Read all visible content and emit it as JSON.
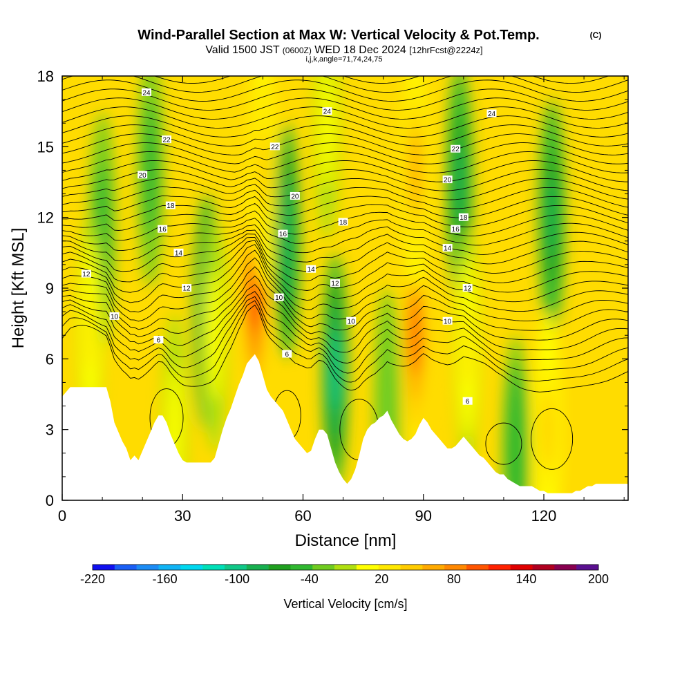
{
  "title": {
    "main": "Wind-Parallel Section at Max W: Vertical Velocity & Pot.Temp.",
    "copyright": "(C)",
    "valid_prefix": "Valid 1500 JST",
    "valid_utc": "(0600Z)",
    "valid_date": "WED 18 Dec 2024",
    "forecast": "[12hrFcst@2224z]",
    "indices": "i,j,k,angle=71,74,24,75"
  },
  "chart_data": {
    "type": "heatmap",
    "xlabel": "Distance [nm]",
    "ylabel": "Height [Kft MSL]",
    "xlim": [
      0,
      141
    ],
    "ylim": [
      0,
      18
    ],
    "x_ticks": [
      0,
      30,
      60,
      90,
      120
    ],
    "y_ticks": [
      0,
      3,
      6,
      9,
      12,
      15,
      18
    ],
    "terrain": {
      "x": [
        0,
        1,
        2,
        11,
        12,
        13,
        15,
        16,
        17,
        18,
        19,
        20,
        21,
        22,
        23,
        24,
        25,
        26,
        27,
        28,
        29,
        30,
        31,
        32,
        33,
        34,
        35,
        37,
        38,
        39,
        40,
        41,
        42,
        43,
        44,
        45,
        46,
        47,
        48,
        49,
        50,
        51,
        52,
        53,
        54,
        55,
        56,
        57,
        58,
        59,
        60,
        61,
        62,
        63,
        64,
        65,
        66,
        67,
        68,
        69,
        70,
        71,
        72,
        73,
        74,
        75,
        76,
        77,
        78,
        79,
        80,
        81,
        82,
        83,
        84,
        85,
        86,
        87,
        88,
        89,
        90,
        91,
        92,
        93,
        94,
        95,
        96,
        97,
        98,
        99,
        100,
        101,
        102,
        103,
        104,
        105,
        106,
        107,
        108,
        109,
        110,
        111,
        112,
        113,
        114,
        115,
        116,
        117,
        118,
        119,
        120,
        121,
        122,
        123,
        124,
        125,
        126,
        127,
        128,
        129,
        130,
        131,
        132,
        133,
        134,
        135,
        136,
        137,
        138,
        139,
        140,
        141
      ],
      "y": [
        4.4,
        4.6,
        4.8,
        4.8,
        4.2,
        3.3,
        2.5,
        2.2,
        1.7,
        1.9,
        1.7,
        2.1,
        2.5,
        2.9,
        3.3,
        3.6,
        3.6,
        3.3,
        2.8,
        2.4,
        2.0,
        1.7,
        1.6,
        1.6,
        1.6,
        1.6,
        1.6,
        1.6,
        1.8,
        2.4,
        3.0,
        3.5,
        3.9,
        4.4,
        4.9,
        5.3,
        5.8,
        6.0,
        6.2,
        5.9,
        5.3,
        4.7,
        4.4,
        4.2,
        4.0,
        3.8,
        3.4,
        3.0,
        2.6,
        2.4,
        2.2,
        2.0,
        2.1,
        2.6,
        3.0,
        3.0,
        2.8,
        2.2,
        1.6,
        1.2,
        0.9,
        0.7,
        0.9,
        1.3,
        1.9,
        2.6,
        3.0,
        3.2,
        3.3,
        3.5,
        3.6,
        3.8,
        3.4,
        3.1,
        2.8,
        2.6,
        2.5,
        2.6,
        2.8,
        3.2,
        3.5,
        3.3,
        3.0,
        2.8,
        2.6,
        2.4,
        2.2,
        2.2,
        2.3,
        2.5,
        2.7,
        2.5,
        2.3,
        2.1,
        1.9,
        1.8,
        1.6,
        1.4,
        1.2,
        1.1,
        1.1,
        0.9,
        0.8,
        0.7,
        0.6,
        0.6,
        0.6,
        0.6,
        0.5,
        0.4,
        0.4,
        0.3,
        0.3,
        0.3,
        0.3,
        0.3,
        0.3,
        0.3,
        0.4,
        0.4,
        0.5,
        0.6,
        0.6,
        0.7,
        0.7,
        0.7,
        0.7,
        0.7,
        0.7,
        0.7,
        0.7,
        0.7
      ]
    },
    "updrafts": [
      {
        "x": 48,
        "y": 8.8,
        "peak": 150
      },
      {
        "x": 88,
        "y": 7.0,
        "peak": 120
      },
      {
        "x": 88,
        "y": 14.0,
        "peak": 90
      },
      {
        "x": 50,
        "y": 14.0,
        "peak": 75
      },
      {
        "x": 7,
        "y": 7.2,
        "peak": 50
      },
      {
        "x": 121,
        "y": 3.0,
        "peak": 70
      },
      {
        "x": 101,
        "y": 6.5,
        "peak": 40
      },
      {
        "x": 38,
        "y": 7.0,
        "peak": 30
      },
      {
        "x": 28,
        "y": 3.0,
        "peak": 30
      },
      {
        "x": 66,
        "y": 16.0,
        "peak": 30
      }
    ],
    "downdrafts": [
      {
        "x": 36,
        "y": 8.0,
        "peak": -85
      },
      {
        "x": 56,
        "y": 11.0,
        "peak": -80
      },
      {
        "x": 68,
        "y": 5.5,
        "peak": -90
      },
      {
        "x": 99,
        "y": 13.5,
        "peak": -65
      },
      {
        "x": 122,
        "y": 12.0,
        "peak": -65
      },
      {
        "x": 10,
        "y": 11.5,
        "peak": -35
      },
      {
        "x": 22,
        "y": 14.0,
        "peak": -35
      },
      {
        "x": 113,
        "y": 2.0,
        "peak": -40
      },
      {
        "x": 81,
        "y": 4.0,
        "peak": -20
      }
    ],
    "theta_contours": {
      "labeled": [
        {
          "value": "6",
          "x": 24,
          "y": 6.8
        },
        {
          "value": "6",
          "x": 56,
          "y": 6.2
        },
        {
          "value": "6",
          "x": 101,
          "y": 4.2
        },
        {
          "value": "10",
          "x": 13,
          "y": 7.8
        },
        {
          "value": "10",
          "x": 54,
          "y": 8.6
        },
        {
          "value": "10",
          "x": 72,
          "y": 7.6
        },
        {
          "value": "10",
          "x": 96,
          "y": 7.6
        },
        {
          "value": "12",
          "x": 6,
          "y": 9.6
        },
        {
          "value": "12",
          "x": 31,
          "y": 9.0
        },
        {
          "value": "12",
          "x": 68,
          "y": 9.2
        },
        {
          "value": "12",
          "x": 101,
          "y": 9.0
        },
        {
          "value": "14",
          "x": 29,
          "y": 10.5
        },
        {
          "value": "14",
          "x": 62,
          "y": 9.8
        },
        {
          "value": "14",
          "x": 96,
          "y": 10.7
        },
        {
          "value": "16",
          "x": 25,
          "y": 11.5
        },
        {
          "value": "16",
          "x": 55,
          "y": 11.3
        },
        {
          "value": "16",
          "x": 98,
          "y": 11.5
        },
        {
          "value": "18",
          "x": 27,
          "y": 12.5
        },
        {
          "value": "18",
          "x": 70,
          "y": 11.8
        },
        {
          "value": "18",
          "x": 100,
          "y": 12.0
        },
        {
          "value": "20",
          "x": 20,
          "y": 13.8
        },
        {
          "value": "20",
          "x": 58,
          "y": 12.9
        },
        {
          "value": "20",
          "x": 96,
          "y": 13.6
        },
        {
          "value": "22",
          "x": 26,
          "y": 15.3
        },
        {
          "value": "22",
          "x": 53,
          "y": 15.0
        },
        {
          "value": "22",
          "x": 98,
          "y": 14.9
        },
        {
          "value": "24",
          "x": 21,
          "y": 17.3
        },
        {
          "value": "24",
          "x": 66,
          "y": 16.5
        },
        {
          "value": "24",
          "x": 107,
          "y": 16.4
        }
      ]
    },
    "colorbar": {
      "label": "Vertical Velocity [cm/s]",
      "min": -220,
      "max": 200,
      "step": 20,
      "tick_labels": [
        "-220",
        "-160",
        "-100",
        "-40",
        "20",
        "80",
        "140",
        "200"
      ],
      "tick_values": [
        -220,
        -160,
        -100,
        -40,
        20,
        80,
        140,
        200
      ],
      "colors": [
        "#1010f0",
        "#1a5ff5",
        "#1c8cf5",
        "#10b4f5",
        "#00d8f0",
        "#00e0b8",
        "#10c888",
        "#18b050",
        "#20a020",
        "#30b830",
        "#70cc20",
        "#b0e010",
        "#ffff00",
        "#ffe800",
        "#ffcc00",
        "#ffaa00",
        "#ff8800",
        "#ff5500",
        "#ff2200",
        "#e00000",
        "#b00020",
        "#880050",
        "#5a1090"
      ]
    }
  }
}
